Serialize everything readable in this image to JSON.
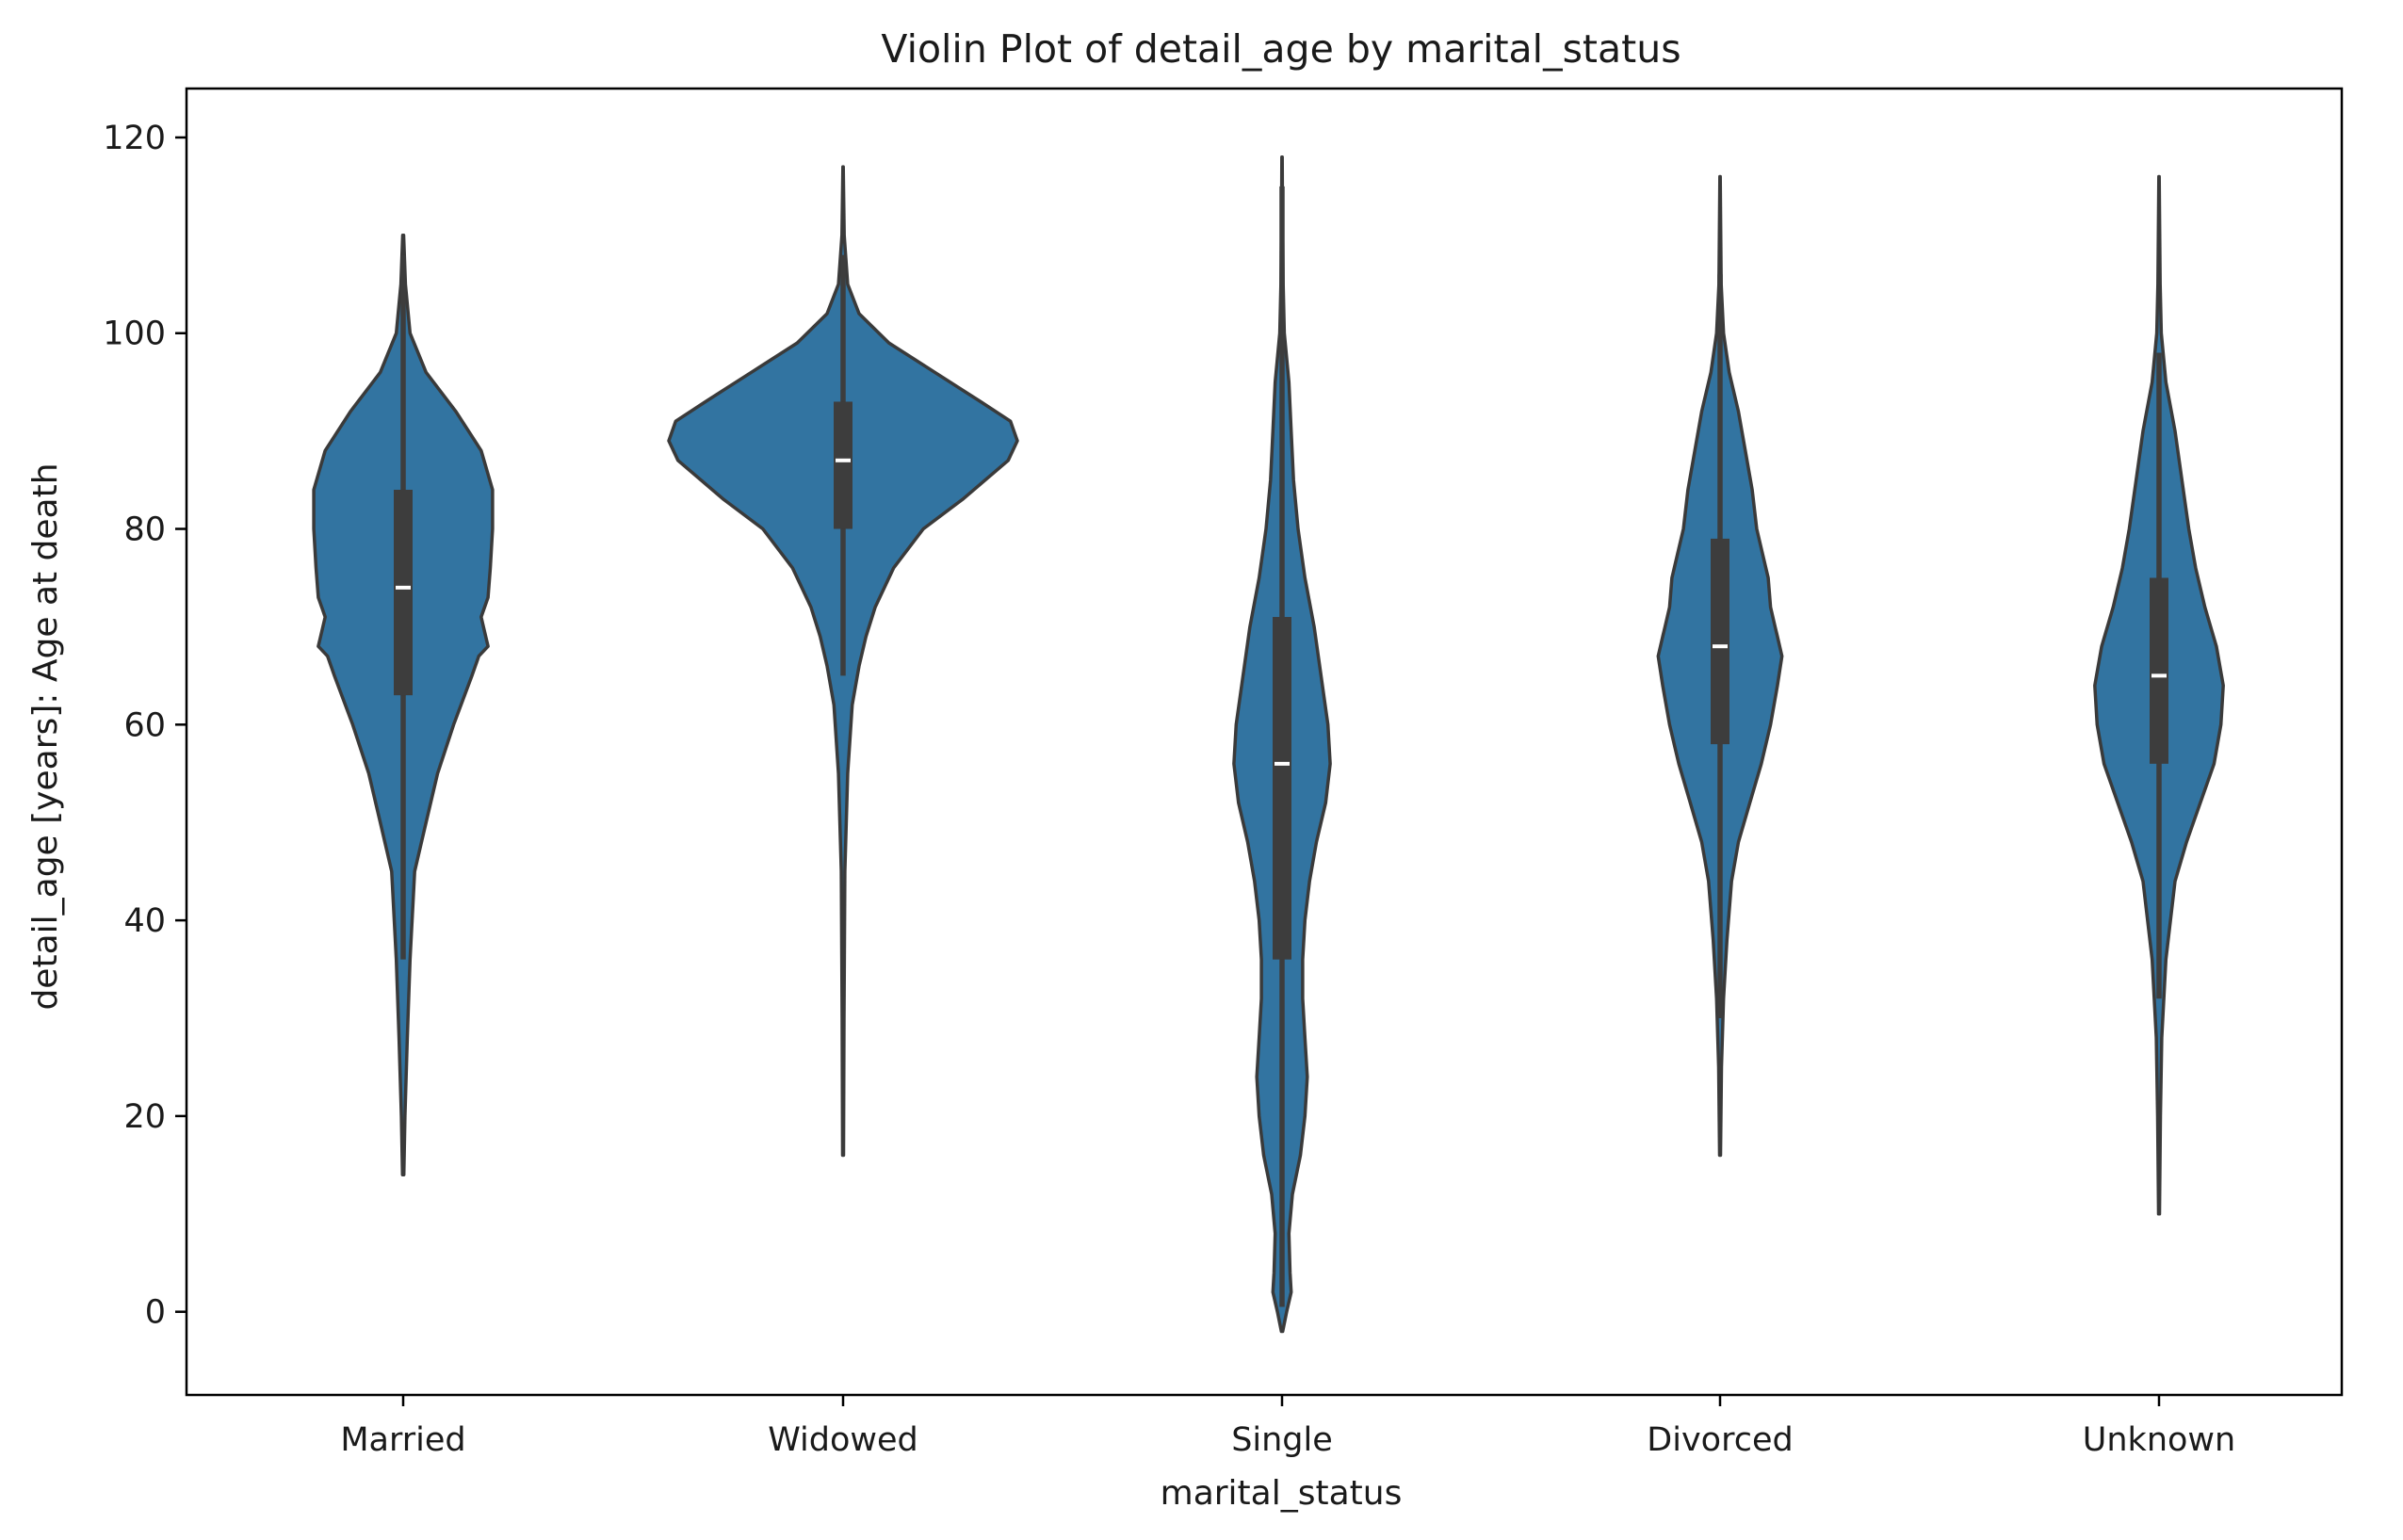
{
  "chart_data": {
    "type": "violin",
    "title": "Violin Plot of detail_age by marital_status",
    "xlabel": "marital_status",
    "ylabel": "detail_age [years]: Age at death",
    "ylim": [
      -8.5,
      125
    ],
    "yticks": [
      0,
      20,
      40,
      60,
      80,
      100,
      120
    ],
    "grid": false,
    "legend": "none",
    "fill_color": "#3274a1",
    "categories": [
      "Married",
      "Widowed",
      "Single",
      "Divorced",
      "Unknown"
    ],
    "series": [
      {
        "category": "Married",
        "min": 14,
        "q1": 63,
        "median": 74,
        "q3": 84,
        "max": 110,
        "whisker_low": 36,
        "whisker_high": 108,
        "density": [
          [
            14,
            0.003
          ],
          [
            20,
            0.008
          ],
          [
            28,
            0.018
          ],
          [
            36,
            0.03
          ],
          [
            45,
            0.05
          ],
          [
            50,
            0.1
          ],
          [
            55,
            0.15
          ],
          [
            60,
            0.22
          ],
          [
            65,
            0.3
          ],
          [
            67,
            0.33
          ],
          [
            68,
            0.37
          ],
          [
            70,
            0.35
          ],
          [
            71,
            0.34
          ],
          [
            73,
            0.37
          ],
          [
            76,
            0.38
          ],
          [
            80,
            0.39
          ],
          [
            84,
            0.39
          ],
          [
            88,
            0.34
          ],
          [
            92,
            0.23
          ],
          [
            96,
            0.1
          ],
          [
            100,
            0.03
          ],
          [
            105,
            0.01
          ],
          [
            110,
            0.002
          ]
        ]
      },
      {
        "category": "Widowed",
        "min": 16,
        "q1": 80,
        "median": 87,
        "q3": 93,
        "max": 117,
        "whisker_low": 65,
        "whisker_high": 108,
        "density": [
          [
            16,
            0.002
          ],
          [
            30,
            0.004
          ],
          [
            45,
            0.008
          ],
          [
            55,
            0.02
          ],
          [
            62,
            0.04
          ],
          [
            66,
            0.07
          ],
          [
            69,
            0.1
          ],
          [
            72,
            0.14
          ],
          [
            76,
            0.22
          ],
          [
            80,
            0.35
          ],
          [
            83,
            0.52
          ],
          [
            87,
            0.72
          ],
          [
            89,
            0.76
          ],
          [
            91,
            0.73
          ],
          [
            93,
            0.6
          ],
          [
            96,
            0.4
          ],
          [
            99,
            0.2
          ],
          [
            102,
            0.07
          ],
          [
            105,
            0.02
          ],
          [
            110,
            0.005
          ],
          [
            117,
            0.001
          ]
        ]
      },
      {
        "category": "Single",
        "min": -2,
        "q1": 36,
        "median": 56,
        "q3": 71,
        "max": 118,
        "whisker_low": 0.5,
        "whisker_high": 115,
        "density": [
          [
            -2,
            0.003
          ],
          [
            0,
            0.02
          ],
          [
            2,
            0.04
          ],
          [
            4,
            0.035
          ],
          [
            8,
            0.03
          ],
          [
            12,
            0.045
          ],
          [
            16,
            0.08
          ],
          [
            20,
            0.1
          ],
          [
            24,
            0.11
          ],
          [
            28,
            0.1
          ],
          [
            32,
            0.09
          ],
          [
            36,
            0.09
          ],
          [
            40,
            0.1
          ],
          [
            44,
            0.12
          ],
          [
            48,
            0.15
          ],
          [
            52,
            0.19
          ],
          [
            56,
            0.21
          ],
          [
            60,
            0.2
          ],
          [
            65,
            0.17
          ],
          [
            70,
            0.14
          ],
          [
            75,
            0.1
          ],
          [
            80,
            0.07
          ],
          [
            85,
            0.05
          ],
          [
            90,
            0.04
          ],
          [
            95,
            0.03
          ],
          [
            100,
            0.01
          ],
          [
            105,
            0.005
          ],
          [
            112,
            0.002
          ],
          [
            118,
            0.001
          ]
        ]
      },
      {
        "category": "Divorced",
        "min": 16,
        "q1": 58,
        "median": 68,
        "q3": 79,
        "max": 116,
        "whisker_low": 30,
        "whisker_high": 106,
        "density": [
          [
            16,
            0.002
          ],
          [
            25,
            0.006
          ],
          [
            32,
            0.015
          ],
          [
            38,
            0.03
          ],
          [
            44,
            0.05
          ],
          [
            48,
            0.08
          ],
          [
            52,
            0.13
          ],
          [
            56,
            0.18
          ],
          [
            60,
            0.22
          ],
          [
            64,
            0.25
          ],
          [
            67,
            0.27
          ],
          [
            69,
            0.25
          ],
          [
            70,
            0.24
          ],
          [
            72,
            0.22
          ],
          [
            75,
            0.21
          ],
          [
            80,
            0.16
          ],
          [
            84,
            0.14
          ],
          [
            88,
            0.11
          ],
          [
            92,
            0.08
          ],
          [
            96,
            0.04
          ],
          [
            100,
            0.015
          ],
          [
            105,
            0.005
          ],
          [
            116,
            0.001
          ]
        ]
      },
      {
        "category": "Unknown",
        "min": 10,
        "q1": 56,
        "median": 65,
        "q3": 75,
        "max": 116,
        "whisker_low": 32,
        "whisker_high": 98,
        "density": [
          [
            10,
            0.002
          ],
          [
            20,
            0.006
          ],
          [
            28,
            0.012
          ],
          [
            36,
            0.03
          ],
          [
            44,
            0.07
          ],
          [
            48,
            0.12
          ],
          [
            52,
            0.18
          ],
          [
            56,
            0.24
          ],
          [
            60,
            0.27
          ],
          [
            64,
            0.28
          ],
          [
            68,
            0.25
          ],
          [
            72,
            0.2
          ],
          [
            76,
            0.16
          ],
          [
            80,
            0.13
          ],
          [
            85,
            0.1
          ],
          [
            90,
            0.07
          ],
          [
            95,
            0.03
          ],
          [
            100,
            0.01
          ],
          [
            105,
            0.005
          ],
          [
            116,
            0.001
          ]
        ]
      }
    ]
  }
}
